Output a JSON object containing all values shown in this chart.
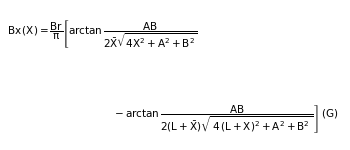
{
  "background_color": "#ffffff",
  "text_color": "#000000",
  "figsize": [
    3.5,
    1.5
  ],
  "dpi": 100,
  "formula_line1": "$\\mathrm{Bx\\,(X) = \\dfrac{Br}{\\pi}\\left[\\arctan\\dfrac{AB}{2\\bar{X}\\sqrt{4X^2+A^2+B^2}}\\right.}$",
  "formula_line2": "$\\mathrm{\\left.\\quad\\quad - \\arctan\\dfrac{AB}{2(L+\\bar{X})\\sqrt{\\,4\\,(L+X)^2+A^2+B^2\\,}}\\right]\\,(G)}$"
}
